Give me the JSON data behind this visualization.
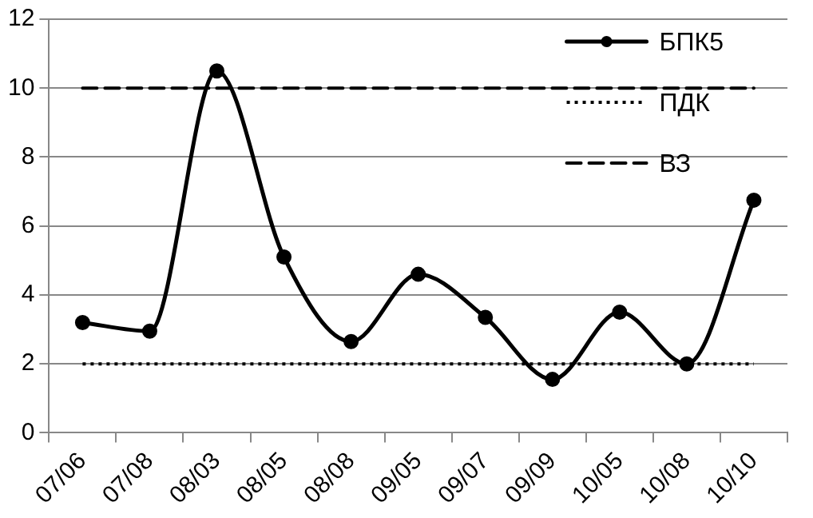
{
  "chart_data": {
    "type": "line",
    "categories": [
      "07/06",
      "07/08",
      "08/03",
      "08/05",
      "08/08",
      "09/05",
      "09/07",
      "09/09",
      "10/05",
      "10/08",
      "10/10"
    ],
    "series": [
      {
        "name": "БПК5",
        "color": "#000000",
        "marker": "circle",
        "line_style": "solid",
        "values": [
          3.2,
          2.95,
          10.5,
          5.1,
          2.65,
          4.6,
          3.35,
          1.55,
          3.5,
          2.0,
          6.75
        ]
      },
      {
        "name": "ПДК",
        "color": "#000000",
        "marker": "none",
        "line_style": "dotted",
        "values": [
          2,
          2,
          2,
          2,
          2,
          2,
          2,
          2,
          2,
          2,
          2
        ]
      },
      {
        "name": "ВЗ",
        "color": "#000000",
        "marker": "none",
        "line_style": "dashed",
        "values": [
          10,
          10,
          10,
          10,
          10,
          10,
          10,
          10,
          10,
          10,
          10
        ]
      }
    ],
    "ylim": [
      0,
      12
    ],
    "yticks": [
      0,
      2,
      4,
      6,
      8,
      10,
      12
    ],
    "grid": "y",
    "legend": "top right"
  }
}
